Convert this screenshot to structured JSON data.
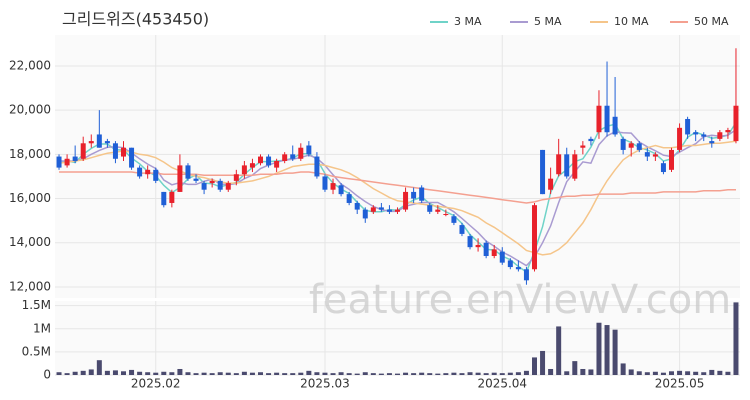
{
  "chart_data": {
    "type": "candlestick",
    "title": "그리드위즈(453450)",
    "watermark": "feature.enViewV.com",
    "legend": "top-right",
    "grid": true,
    "up_color": "#e8212b",
    "down_color": "#1f5fd6",
    "categories": [
      null,
      null,
      null,
      null,
      null,
      null,
      null,
      null,
      null,
      null,
      null,
      null,
      "2025.02",
      null,
      null,
      null,
      null,
      null,
      null,
      null,
      null,
      null,
      null,
      null,
      null,
      null,
      null,
      null,
      null,
      null,
      null,
      null,
      null,
      "2025.03",
      null,
      null,
      null,
      null,
      null,
      null,
      null,
      null,
      null,
      null,
      null,
      null,
      null,
      null,
      null,
      null,
      null,
      null,
      null,
      null,
      null,
      "2025.04",
      null,
      null,
      null,
      null,
      null,
      null,
      null,
      null,
      null,
      null,
      null,
      null,
      null,
      null,
      null,
      null,
      null,
      null,
      null,
      null,
      null,
      "2025.05",
      null,
      null,
      null,
      null,
      null,
      null,
      null
    ],
    "open": [
      17900,
      17500,
      17900,
      17800,
      18500,
      18900,
      18600,
      18500,
      17900,
      18300,
      17400,
      17100,
      17300,
      16300,
      15800,
      16300,
      17500,
      16900,
      16700,
      16700,
      16800,
      16400,
      16800,
      17100,
      17400,
      17600,
      17900,
      17400,
      17700,
      18000,
      17800,
      18400,
      17900,
      17000,
      16400,
      16600,
      16200,
      15800,
      15500,
      15400,
      15600,
      15500,
      15400,
      15500,
      16300,
      16500,
      15700,
      15400,
      15300,
      15200,
      14800,
      14300,
      13800,
      14000,
      13400,
      13600,
      13200,
      12900,
      12800,
      12800,
      18200,
      16400,
      17100,
      18000,
      16900,
      18300,
      18700,
      19000,
      20200,
      19700,
      18700,
      18300,
      18500,
      18100,
      17900,
      17600,
      17300,
      18200,
      19600,
      19000,
      18900,
      18600,
      18700,
      19000,
      18600
    ],
    "high": [
      18000,
      18000,
      18400,
      18800,
      18900,
      20000,
      18700,
      18600,
      18600,
      18300,
      17500,
      17500,
      17400,
      16300,
      16400,
      18000,
      17600,
      17100,
      16800,
      16900,
      16900,
      16800,
      17300,
      17700,
      17800,
      18000,
      18000,
      17800,
      18100,
      18400,
      18500,
      18600,
      18100,
      17100,
      16900,
      16700,
      16300,
      15900,
      15600,
      15700,
      15800,
      15700,
      15600,
      16500,
      16500,
      16600,
      15800,
      15700,
      15500,
      15300,
      14900,
      14400,
      14200,
      14100,
      13900,
      13800,
      13300,
      13200,
      12900,
      15800,
      18200,
      17400,
      18700,
      18300,
      18200,
      18600,
      18800,
      20900,
      22200,
      21500,
      18800,
      18600,
      18600,
      18300,
      18100,
      17700,
      18300,
      19400,
      19700,
      19100,
      19000,
      18800,
      19100,
      19200,
      22800
    ],
    "low": [
      17300,
      17400,
      17600,
      17700,
      18300,
      18300,
      18300,
      17600,
      17700,
      17300,
      16900,
      16900,
      16700,
      15600,
      15600,
      16300,
      16800,
      16700,
      16200,
      16500,
      16300,
      16300,
      16600,
      16900,
      17200,
      17500,
      17400,
      17200,
      17600,
      17700,
      17700,
      17900,
      16900,
      16300,
      16200,
      16100,
      15700,
      15300,
      14900,
      15300,
      15400,
      15300,
      15300,
      15400,
      15800,
      15800,
      15300,
      15300,
      15200,
      14800,
      14300,
      13700,
      13600,
      13300,
      13300,
      13000,
      12800,
      12700,
      12100,
      12700,
      16200,
      16200,
      17000,
      16900,
      16800,
      18000,
      18400,
      18700,
      18800,
      18800,
      18000,
      17900,
      18100,
      17700,
      17700,
      17100,
      17200,
      18100,
      18700,
      18600,
      18600,
      18300,
      18600,
      18700,
      18500
    ],
    "close": [
      17400,
      17800,
      17700,
      18500,
      18600,
      18300,
      18500,
      17800,
      18300,
      17400,
      17000,
      17300,
      16800,
      15700,
      16300,
      17500,
      16900,
      16800,
      16400,
      16800,
      16400,
      16700,
      17100,
      17500,
      17600,
      17900,
      17500,
      17700,
      18000,
      17800,
      18300,
      18000,
      17000,
      16400,
      16700,
      16200,
      15800,
      15500,
      15100,
      15600,
      15500,
      15400,
      15500,
      16300,
      16000,
      15900,
      15400,
      15500,
      15300,
      14900,
      14400,
      13800,
      13900,
      13400,
      13700,
      13100,
      12900,
      12800,
      12300,
      15700,
      16200,
      16900,
      18000,
      17000,
      18000,
      18400,
      18600,
      20200,
      19000,
      18900,
      18200,
      18500,
      18200,
      17900,
      18000,
      17200,
      18200,
      19200,
      18900,
      18900,
      18800,
      18500,
      19000,
      19100,
      20200
    ],
    "ylim": [
      11500,
      23400
    ],
    "yticks": [
      {
        "value": 12000,
        "label": "12,000"
      },
      {
        "value": 14000,
        "label": "14,000"
      },
      {
        "value": 16000,
        "label": "16,000"
      },
      {
        "value": 18000,
        "label": "18,000"
      },
      {
        "value": 20000,
        "label": "20,000"
      },
      {
        "value": 22000,
        "label": "22,000"
      }
    ],
    "ma_series": [
      {
        "name": "3 MA",
        "color": "#6fd3c8",
        "values": [
          17600,
          17700,
          17630,
          18000,
          18270,
          18470,
          18470,
          18200,
          18200,
          17830,
          17570,
          17230,
          17030,
          16600,
          16270,
          16500,
          16900,
          17070,
          16700,
          16670,
          16530,
          16630,
          16730,
          17100,
          17400,
          17670,
          17670,
          17700,
          17730,
          17830,
          18030,
          18030,
          17770,
          17130,
          16700,
          16430,
          16230,
          15830,
          15470,
          15400,
          15400,
          15500,
          15470,
          15730,
          15930,
          16070,
          15770,
          15600,
          15400,
          15230,
          14870,
          14370,
          14030,
          13700,
          13670,
          13400,
          13230,
          12930,
          12670,
          13600,
          14730,
          16270,
          17030,
          17300,
          17670,
          17800,
          18330,
          19070,
          19270,
          19370,
          18700,
          18530,
          18300,
          18200,
          18030,
          17700,
          17800,
          18200,
          18770,
          19000,
          18870,
          18730,
          18770,
          18870,
          19430
        ]
      },
      {
        "name": "5 MA",
        "color": "#a99bd1",
        "values": [
          17700,
          17700,
          17700,
          17800,
          18000,
          18180,
          18320,
          18340,
          18300,
          18060,
          17800,
          17560,
          17360,
          16840,
          16620,
          16720,
          16640,
          16640,
          16780,
          16880,
          16660,
          16620,
          16680,
          16900,
          17060,
          17360,
          17520,
          17640,
          17740,
          17780,
          17860,
          17960,
          17820,
          17500,
          17080,
          16660,
          16420,
          16120,
          15860,
          15640,
          15500,
          15420,
          15420,
          15660,
          15740,
          15820,
          15820,
          15820,
          15620,
          15400,
          15100,
          14780,
          14460,
          14080,
          13840,
          13580,
          13400,
          13180,
          12960,
          13360,
          14000,
          14760,
          15820,
          16760,
          17220,
          17660,
          17600,
          18440,
          18840,
          19020,
          18980,
          18960,
          18560,
          18340,
          18160,
          17960,
          17900,
          18100,
          18300,
          18480,
          18800,
          18860,
          18820,
          18860,
          19120
        ]
      },
      {
        "name": "10 MA",
        "color": "#f5c58a",
        "values": [
          17600,
          17650,
          17700,
          17750,
          17850,
          17950,
          18050,
          18100,
          18150,
          18100,
          18000,
          17950,
          17850,
          17650,
          17400,
          17250,
          17100,
          17000,
          16950,
          16850,
          16750,
          16700,
          16700,
          16750,
          16800,
          16900,
          17000,
          17150,
          17300,
          17450,
          17500,
          17550,
          17550,
          17500,
          17400,
          17300,
          17150,
          16950,
          16700,
          16450,
          16250,
          16050,
          15900,
          15850,
          15800,
          15750,
          15700,
          15650,
          15600,
          15550,
          15450,
          15300,
          15150,
          14900,
          14700,
          14450,
          14200,
          13950,
          13650,
          13550,
          13450,
          13500,
          13700,
          14000,
          14450,
          14900,
          15500,
          16200,
          16800,
          17300,
          17750,
          18000,
          18200,
          18300,
          18400,
          18300,
          18300,
          18350,
          18400,
          18400,
          18450,
          18500,
          18500,
          18550,
          18600
        ]
      },
      {
        "name": "50 MA",
        "color": "#f4a090",
        "values": [
          17200,
          17200,
          17200,
          17200,
          17200,
          17200,
          17200,
          17200,
          17200,
          17200,
          17150,
          17150,
          17150,
          17100,
          17100,
          17100,
          17100,
          17100,
          17050,
          17050,
          17050,
          17050,
          17050,
          17050,
          17050,
          17100,
          17100,
          17100,
          17150,
          17150,
          17200,
          17200,
          17150,
          17100,
          17000,
          16950,
          16900,
          16850,
          16800,
          16750,
          16700,
          16650,
          16600,
          16550,
          16500,
          16450,
          16400,
          16350,
          16300,
          16250,
          16200,
          16150,
          16100,
          16050,
          16000,
          15950,
          15900,
          15850,
          15800,
          15850,
          15950,
          16000,
          16050,
          16100,
          16100,
          16150,
          16150,
          16200,
          16200,
          16200,
          16200,
          16250,
          16250,
          16250,
          16250,
          16300,
          16300,
          16300,
          16300,
          16300,
          16350,
          16350,
          16350,
          16400,
          16400
        ]
      }
    ],
    "volume": {
      "color": "#4a4a6e",
      "ylim": [
        0,
        1600000
      ],
      "yticks": [
        0,
        {
          "value": 500000,
          "label": "0.5M"
        },
        {
          "value": 1000000,
          "label": "1M"
        },
        {
          "value": 1500000,
          "label": "1.5M"
        }
      ],
      "values": [
        60000,
        40000,
        70000,
        90000,
        120000,
        320000,
        90000,
        100000,
        80000,
        110000,
        70000,
        60000,
        50000,
        70000,
        60000,
        130000,
        60000,
        40000,
        50000,
        40000,
        60000,
        50000,
        40000,
        70000,
        50000,
        60000,
        40000,
        50000,
        40000,
        40000,
        50000,
        90000,
        60000,
        50000,
        40000,
        60000,
        40000,
        30000,
        60000,
        40000,
        30000,
        40000,
        30000,
        50000,
        40000,
        50000,
        40000,
        30000,
        40000,
        50000,
        40000,
        60000,
        50000,
        40000,
        50000,
        40000,
        50000,
        60000,
        90000,
        380000,
        520000,
        130000,
        1050000,
        80000,
        300000,
        130000,
        120000,
        1130000,
        1080000,
        980000,
        250000,
        120000,
        80000,
        60000,
        70000,
        50000,
        80000,
        90000,
        80000,
        70000,
        60000,
        110000,
        90000,
        70000,
        1570000
      ]
    }
  }
}
